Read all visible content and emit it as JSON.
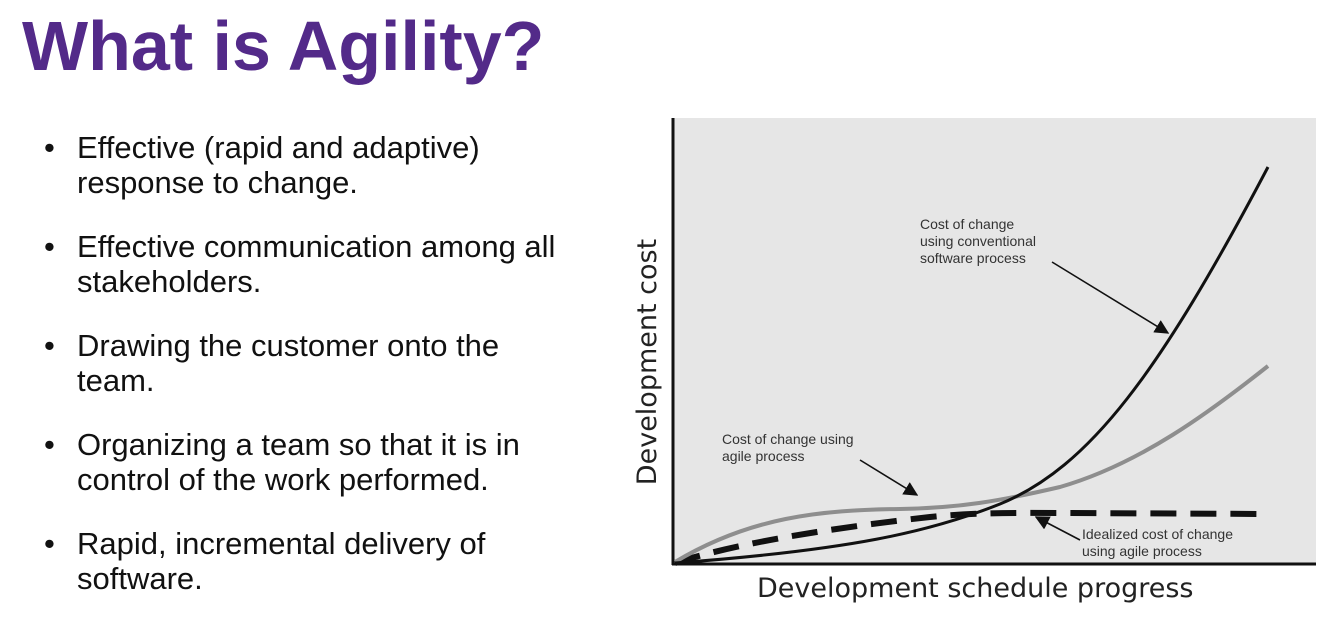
{
  "slide": {
    "title": "What is Agility?",
    "bullets": [
      {
        "symbol": "•",
        "line1": "Effective (rapid and adaptive)",
        "line2": "response to change."
      },
      {
        "symbol": "•",
        "line1": "Effective communication among all",
        "line2": "stakeholders."
      },
      {
        "symbol": "•",
        "line1": "Drawing the customer onto the",
        "line2": "team."
      },
      {
        "symbol": "•",
        "line1": "Organizing a team so that it is in",
        "line2": "control of the work performed."
      },
      {
        "symbol": "•",
        "line1": "Rapid, incremental delivery of",
        "line2": "software."
      }
    ],
    "title_color": "#532a89"
  },
  "diagram": {
    "x_axis_label": "Development schedule progress",
    "y_axis_label": "Development cost",
    "background_color": "#e6e6e6",
    "conventional": {
      "line1": "Cost of change",
      "line2": "using conventional",
      "line3": "software process",
      "color": "#111111"
    },
    "agile": {
      "line1": "Cost of change using",
      "line2": "agile process",
      "color": "#8e8e8e"
    },
    "idealized": {
      "line1": "Idealized cost of change",
      "line2": "using agile process",
      "color": "#111111"
    }
  }
}
